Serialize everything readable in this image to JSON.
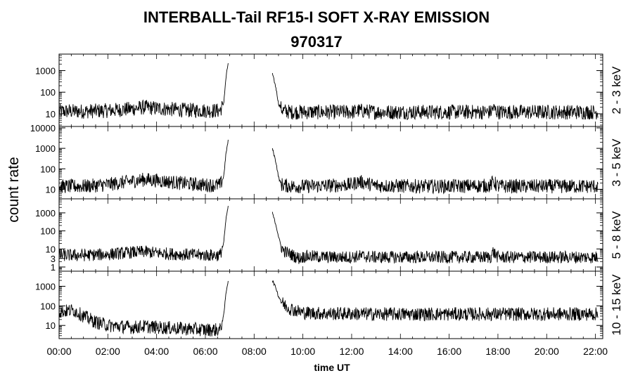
{
  "chart_data": {
    "type": "line",
    "title": "INTERBALL-Tail RF15-I SOFT X-RAY EMISSION",
    "subtitle": "970317",
    "xlabel": "time UT",
    "ylabel": "count rate",
    "x_ticks": [
      "00:00",
      "02:00",
      "04:00",
      "06:00",
      "08:00",
      "10:00",
      "12:00",
      "14:00",
      "16:00",
      "18:00",
      "20:00",
      "22:00"
    ],
    "xlim_hours": [
      0,
      22.3
    ],
    "yscale": "log",
    "panels": [
      {
        "name": "2 - 3 keV",
        "ylim": [
          3,
          5000
        ],
        "y_ticks": [
          10,
          100,
          1000
        ],
        "y_tick_labels": [
          "10",
          "100",
          "1000"
        ],
        "series": [
          {
            "x": [
              0,
              1,
              2,
              3,
              3.5,
              4,
              5,
              6,
              6.6,
              6.75,
              6.85,
              6.95
            ],
            "y": [
              13,
              13,
              14,
              17,
              20,
              18,
              15,
              14,
              14,
              30,
              500,
              3000
            ]
          },
          {
            "x": [
              8.75,
              8.9,
              9.0,
              9.1,
              9.2,
              9.5,
              9.85,
              10.1,
              11,
              12,
              12.3,
              13,
              15,
              16,
              17.7,
              17.8,
              18,
              20,
              22.1
            ],
            "y": [
              700,
              150,
              30,
              18,
              14,
              12,
              12,
              12,
              12,
              12,
              14,
              12,
              12,
              12,
              12,
              18,
              12,
              12,
              12
            ]
          }
        ]
      },
      {
        "name": "3 - 5 keV",
        "ylim": [
          4,
          10000
        ],
        "y_ticks": [
          10,
          100,
          1000,
          10000
        ],
        "y_tick_labels": [
          "10",
          "100",
          "1000",
          "10000"
        ],
        "series": [
          {
            "x": [
              0,
              1,
              2,
              3,
              3.5,
              4,
              5,
              6,
              6.6,
              6.75,
              6.85,
              6.95
            ],
            "y": [
              14,
              14,
              17,
              25,
              30,
              27,
              20,
              16,
              16,
              40,
              600,
              3000
            ]
          },
          {
            "x": [
              8.75,
              8.9,
              9.0,
              9.1,
              9.2,
              9.5,
              9.85,
              10.1,
              11,
              12,
              12.3,
              13,
              15,
              16,
              17.7,
              17.8,
              18,
              20,
              22.1
            ],
            "y": [
              1000,
              200,
              40,
              18,
              16,
              14,
              14,
              14,
              15,
              17,
              24,
              15,
              14,
              14,
              15,
              25,
              14,
              14,
              14
            ]
          }
        ]
      },
      {
        "name": "5 - 8 keV",
        "ylim": [
          0.7,
          5000
        ],
        "y_ticks": [
          1,
          3,
          10,
          100,
          1000
        ],
        "y_tick_labels": [
          "1",
          "3",
          "10",
          "100",
          "1000"
        ],
        "series": [
          {
            "x": [
              0,
              1,
              2,
              3,
              3.5,
              4,
              5,
              6,
              6.6,
              6.75,
              6.85,
              6.95
            ],
            "y": [
              4.5,
              4.5,
              5,
              6.5,
              7,
              6,
              5,
              4.5,
              4.5,
              20,
              500,
              3000
            ]
          },
          {
            "x": [
              8.75,
              8.9,
              9.0,
              9.1,
              9.2,
              9.5,
              9.85,
              10.1,
              11,
              12,
              12.3,
              13,
              15,
              16,
              17.7,
              17.8,
              18,
              20,
              22.1
            ],
            "y": [
              1000,
              200,
              50,
              15,
              8,
              5,
              3,
              4,
              3.5,
              3.5,
              4,
              3.5,
              3.5,
              3.5,
              3.5,
              7,
              3.5,
              3.5,
              3.5
            ]
          }
        ]
      },
      {
        "name": "10 - 15 keV",
        "ylim": [
          2.5,
          5000
        ],
        "y_ticks": [
          10,
          100,
          1000
        ],
        "y_tick_labels": [
          "10",
          "100",
          "1000"
        ],
        "series": [
          {
            "x": [
              0,
              0.6,
              1,
              1.5,
              2,
              2.5,
              3,
              3.5,
              4,
              5,
              6,
              6.6,
              6.75,
              6.85,
              6.95
            ],
            "y": [
              50,
              60,
              30,
              15,
              10,
              9,
              8,
              9,
              8,
              7,
              6,
              6,
              30,
              500,
              2500
            ]
          },
          {
            "x": [
              8.75,
              8.9,
              9.0,
              9.2,
              9.5,
              10,
              11,
              12,
              13,
              15,
              17,
              19,
              20,
              22.1
            ],
            "y": [
              2000,
              800,
              300,
              120,
              70,
              45,
              40,
              40,
              38,
              38,
              38,
              38,
              38,
              38
            ]
          }
        ]
      }
    ]
  }
}
